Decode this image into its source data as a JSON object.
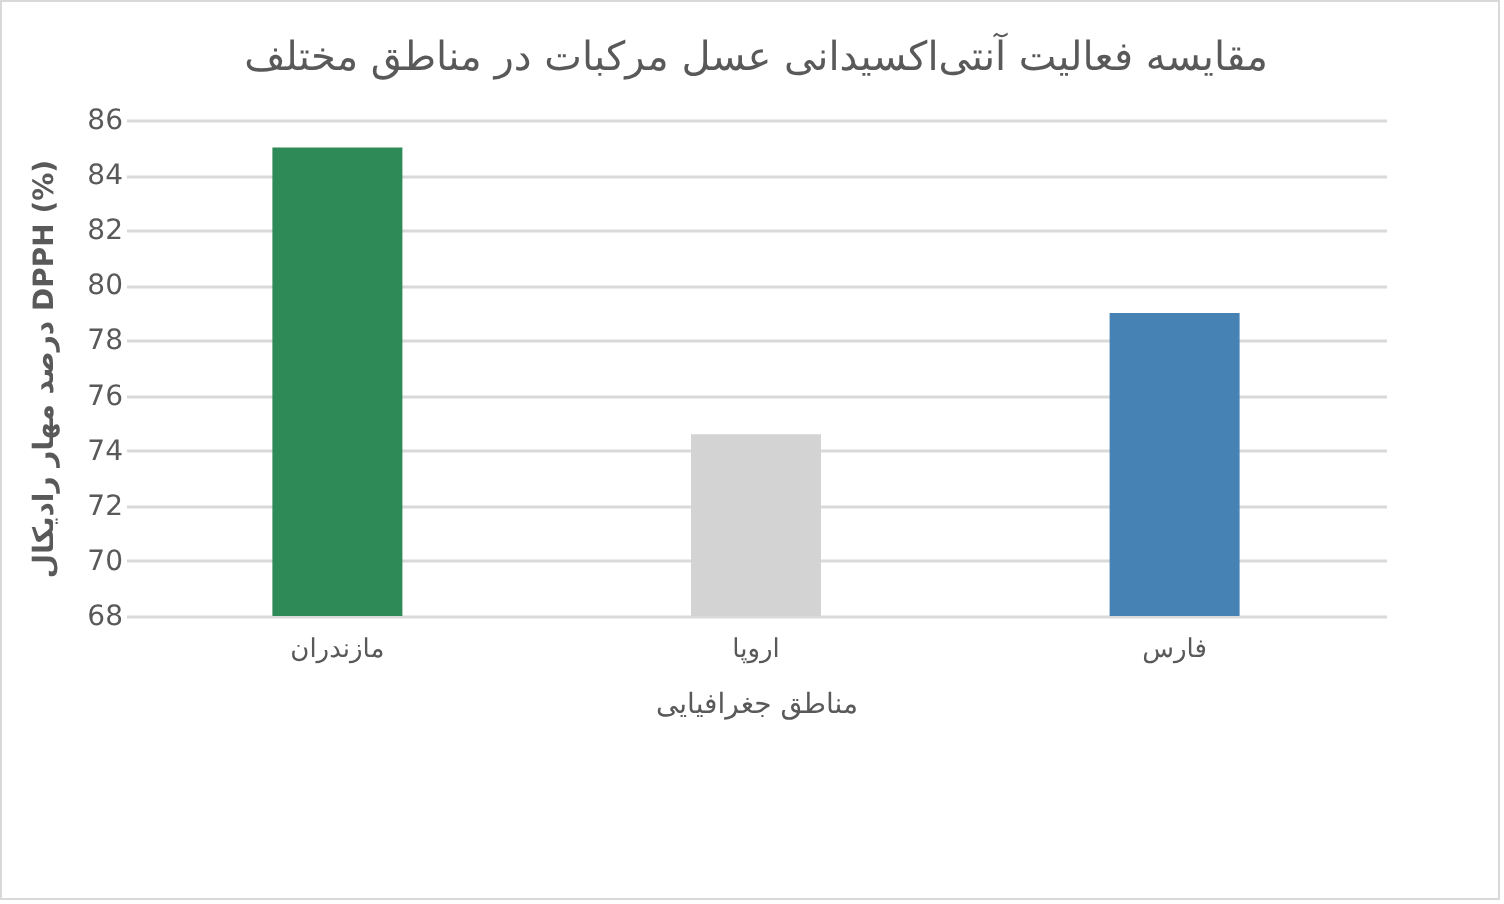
{
  "chart_data": {
    "type": "bar",
    "title": "مقایسه فعالیت آنتی‌اکسیدانی عسل مرکبات در مناطق مختلف",
    "xlabel": "مناطق جغرافیایی",
    "ylabel": "درصد مهار رادیکال DPPH (%)",
    "categories": [
      "مازندران",
      "اروپا",
      "فارس"
    ],
    "values": [
      85,
      74.6,
      79
    ],
    "colors": [
      "#2e8b57",
      "#d3d3d3",
      "#4682b4"
    ],
    "ylim": [
      68,
      86
    ],
    "yticks": [
      68,
      70,
      72,
      74,
      76,
      78,
      80,
      82,
      84,
      86
    ],
    "grid": "y"
  }
}
